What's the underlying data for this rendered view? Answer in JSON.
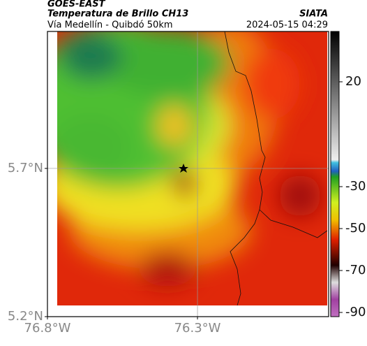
{
  "header": {
    "source": "GOES-EAST",
    "title": "Temperatura de Brillo CH13",
    "org": "SIATA",
    "subtitle": "Vía Medellín - Quibdó 50km",
    "timestamp": "2024-05-15 04:29"
  },
  "map": {
    "xlim": [
      -76.8,
      -75.863
    ],
    "ylim": [
      5.2,
      6.162
    ],
    "xticks": [
      {
        "value": -76.8,
        "label": "76.8°W"
      },
      {
        "value": -76.3,
        "label": "76.3°W"
      }
    ],
    "yticks": [
      {
        "value": 5.2,
        "label": "5.2°N"
      },
      {
        "value": 5.7,
        "label": "5.7°N"
      }
    ],
    "grid": true
  },
  "colorbar": {
    "clim": [
      -92,
      44
    ],
    "ticks": [
      20,
      -30,
      -50,
      -70,
      -90
    ]
  }
}
